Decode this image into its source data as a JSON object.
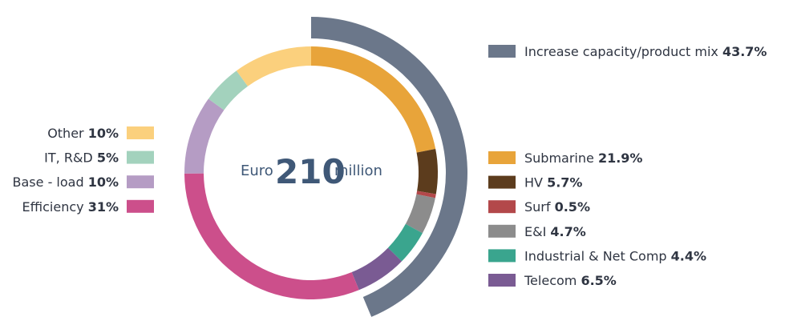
{
  "chart_data": {
    "type": "donut",
    "center": {
      "prefix": "Euro",
      "value": "210",
      "suffix": "million"
    },
    "outer_arc": {
      "label": "Increase capacity/product mix",
      "value_text": "43.7%",
      "value": 43.7,
      "color": "#6b778a"
    },
    "segments": [
      {
        "name": "Submarine",
        "value_text": "21.9%",
        "value": 21.9,
        "color": "#e8a43a",
        "side": "right"
      },
      {
        "name": "HV",
        "value_text": "5.7%",
        "value": 5.7,
        "color": "#5c3c1d",
        "side": "right"
      },
      {
        "name": "Surf",
        "value_text": "0.5%",
        "value": 0.5,
        "color": "#b3484a",
        "side": "right"
      },
      {
        "name": "E&I",
        "value_text": "4.7%",
        "value": 4.7,
        "color": "#8c8c8c",
        "side": "right"
      },
      {
        "name": "Industrial & Net Comp",
        "value_text": "4.4%",
        "value": 4.4,
        "color": "#3aa58e",
        "side": "right"
      },
      {
        "name": "Telecom",
        "value_text": "6.5%",
        "value": 6.5,
        "color": "#7a5b93",
        "side": "right"
      },
      {
        "name": "Efficiency",
        "value_text": "31%",
        "value": 31,
        "color": "#cc4f8b",
        "side": "left"
      },
      {
        "name": "Base - load",
        "value_text": "10%",
        "value": 10,
        "color": "#b59cc4",
        "side": "left"
      },
      {
        "name": "IT, R&D",
        "value_text": "5%",
        "value": 5,
        "color": "#a3d2bd",
        "side": "left"
      },
      {
        "name": "Other",
        "value_text": "10%",
        "value": 10,
        "color": "#fbd07d",
        "side": "left"
      }
    ]
  }
}
